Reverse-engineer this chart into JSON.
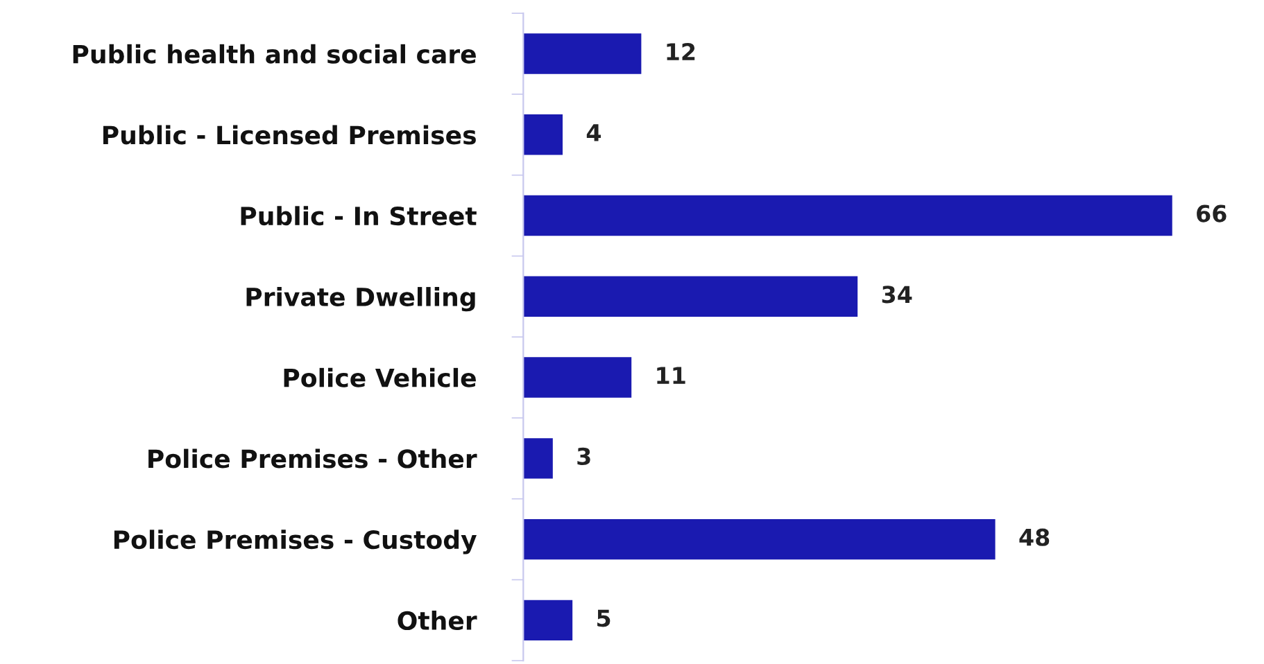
{
  "chart_data": {
    "type": "bar",
    "orientation": "horizontal",
    "categories": [
      "Public health and social care",
      "Public - Licensed Premises",
      "Public - In Street",
      "Private Dwelling",
      "Police Vehicle",
      "Police Premises - Other",
      "Police Premises - Custody",
      "Other"
    ],
    "values": [
      12,
      4,
      66,
      34,
      11,
      3,
      48,
      5
    ],
    "color": "#1a1ab0",
    "data_labels": true,
    "grid": false,
    "legend": false
  }
}
